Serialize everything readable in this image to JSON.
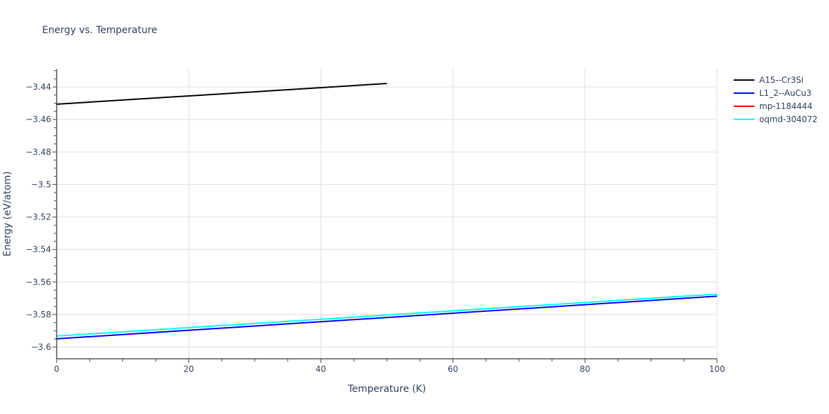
{
  "chart_data": {
    "type": "line",
    "title": "Energy vs. Temperature",
    "xlabel": "Temperature (K)",
    "ylabel": "Energy (eV/atom)",
    "xlim": [
      0,
      100
    ],
    "ylim": [
      -3.607,
      -3.429
    ],
    "x_ticks": [
      0,
      20,
      40,
      60,
      80,
      100
    ],
    "x_tick_labels": [
      "0",
      "20",
      "40",
      "60",
      "80",
      "100"
    ],
    "y_ticks": [
      -3.44,
      -3.46,
      -3.48,
      -3.5,
      -3.52,
      -3.54,
      -3.56,
      -3.58,
      -3.6
    ],
    "y_tick_labels": [
      "−3.44",
      "−3.46",
      "−3.48",
      "−3.5",
      "−3.52",
      "−3.54",
      "−3.56",
      "−3.58",
      "−3.6"
    ],
    "grid": true,
    "legend_position": "right",
    "series": [
      {
        "name": "A15--Cr3Si",
        "color": "#000000",
        "x": [
          0,
          50
        ],
        "values": [
          -3.4506,
          -3.4379
        ]
      },
      {
        "name": "L1_2--AuCu3",
        "color": "#0000ff",
        "x": [
          0,
          100
        ],
        "values": [
          -3.5949,
          -3.5687
        ]
      },
      {
        "name": "mp-1184444",
        "color": "#ff0000",
        "x": [],
        "values": []
      },
      {
        "name": "oqmd-304072",
        "color": "#00ffff",
        "x": [
          0,
          100
        ],
        "values": [
          -3.5932,
          -3.5674
        ]
      }
    ]
  }
}
